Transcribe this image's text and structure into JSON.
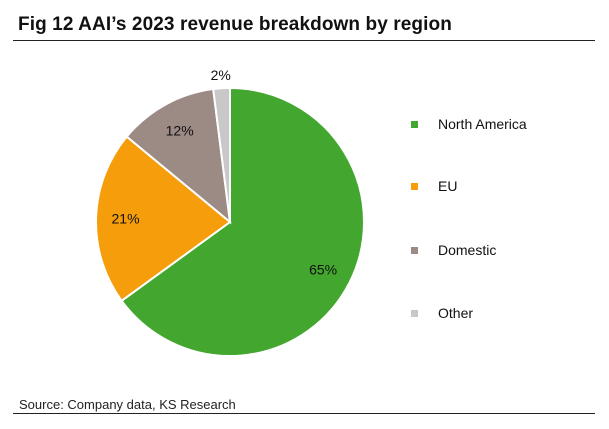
{
  "header": {
    "title": "Fig 12  AAI’s 2023 revenue breakdown by region"
  },
  "footer": {
    "source": "Source: Company data, KS Research"
  },
  "colors": {
    "north_america": "#43a62e",
    "eu": "#f59d0a",
    "domestic": "#9c8a85",
    "other": "#c8c8c8"
  },
  "chart_data": {
    "type": "pie",
    "title": "Fig 12  AAI’s 2023 revenue breakdown by region",
    "start_angle_deg": 0,
    "direction": "clockwise",
    "legend_position": "right",
    "slices": [
      {
        "name": "North America",
        "value": 65,
        "label": "65%",
        "color": "#43a62e"
      },
      {
        "name": "EU",
        "value": 21,
        "label": "21%",
        "color": "#f59d0a"
      },
      {
        "name": "Domestic",
        "value": 12,
        "label": "12%",
        "color": "#9c8a85"
      },
      {
        "name": "Other",
        "value": 2,
        "label": "2%",
        "color": "#c8c8c8"
      }
    ]
  }
}
